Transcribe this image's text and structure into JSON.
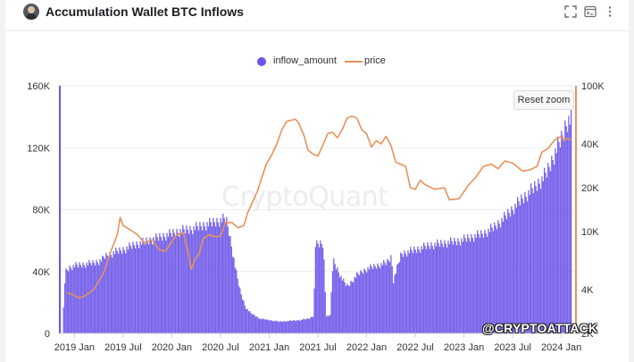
{
  "header": {
    "title": "Accumulation Wallet BTC Inflows",
    "icons": [
      "avatar",
      "fullscreen-icon",
      "terminal-icon",
      "more-vertical-icon"
    ]
  },
  "legend": {
    "series1": "inflow_amount",
    "series2": "price"
  },
  "reset_zoom_label": "Reset zoom",
  "watermark_text": "@CRYPTOATTACK",
  "logo_text": "CryptoQuant",
  "colors": {
    "bars": "#6a55e8",
    "price": "#e8925a",
    "axis_left": "#6a55e8",
    "axis_right": "#e8925a"
  },
  "chart_data": {
    "type": "bar+line",
    "title": "Accumulation Wallet BTC Inflows",
    "x_tick_labels": [
      "2019 Jan",
      "2019 Jul",
      "2020 Jan",
      "2020 Jul",
      "2021 Jan",
      "2021 Jul",
      "2022 Jan",
      "2022 Jul",
      "2023 Jan",
      "2023 Jul",
      "2024 Jan"
    ],
    "x_range": [
      2018.85,
      2024.15
    ],
    "left_axis": {
      "ticks": [
        0,
        40000,
        80000,
        120000,
        160000
      ],
      "tick_labels": [
        "0",
        "40K",
        "80K",
        "120K",
        "160K"
      ],
      "range": [
        0,
        160000
      ]
    },
    "right_axis": {
      "scale": "log",
      "ticks": [
        2000,
        4000,
        10000,
        20000,
        40000,
        100000
      ],
      "tick_labels": [
        "2K",
        "4K",
        "10K",
        "20K",
        "40K",
        "100K"
      ],
      "range": [
        2000,
        100000
      ]
    },
    "series": [
      {
        "name": "inflow_amount",
        "kind": "bar",
        "points": [
          [
            2018.87,
            0
          ],
          [
            2018.9,
            42000
          ],
          [
            2018.95,
            45000
          ],
          [
            2019.0,
            46000
          ],
          [
            2019.1,
            47000
          ],
          [
            2019.2,
            48000
          ],
          [
            2019.28,
            50000
          ],
          [
            2019.3,
            52000
          ],
          [
            2019.4,
            55000
          ],
          [
            2019.5,
            57000
          ],
          [
            2019.6,
            60000
          ],
          [
            2019.7,
            62000
          ],
          [
            2019.8,
            64000
          ],
          [
            2019.9,
            66000
          ],
          [
            2020.0,
            68000
          ],
          [
            2020.1,
            70000
          ],
          [
            2020.2,
            71000
          ],
          [
            2020.3,
            73000
          ],
          [
            2020.4,
            75000
          ],
          [
            2020.5,
            77000
          ],
          [
            2020.55,
            78000
          ],
          [
            2020.58,
            70000
          ],
          [
            2020.62,
            55000
          ],
          [
            2020.66,
            40000
          ],
          [
            2020.7,
            28000
          ],
          [
            2020.75,
            18000
          ],
          [
            2020.8,
            14000
          ],
          [
            2020.85,
            12000
          ],
          [
            2020.9,
            10000
          ],
          [
            2021.0,
            9000
          ],
          [
            2021.1,
            8000
          ],
          [
            2021.2,
            8500
          ],
          [
            2021.3,
            9000
          ],
          [
            2021.4,
            10000
          ],
          [
            2021.45,
            12000
          ],
          [
            2021.47,
            60000
          ],
          [
            2021.55,
            61000
          ],
          [
            2021.58,
            12000
          ],
          [
            2021.62,
            12000
          ],
          [
            2021.65,
            50000
          ],
          [
            2021.75,
            36000
          ],
          [
            2021.8,
            32000
          ],
          [
            2021.85,
            36000
          ],
          [
            2021.9,
            40000
          ],
          [
            2022.0,
            44000
          ],
          [
            2022.1,
            46000
          ],
          [
            2022.2,
            48000
          ],
          [
            2022.25,
            52000
          ],
          [
            2022.27,
            36000
          ],
          [
            2022.35,
            54000
          ],
          [
            2022.45,
            56000
          ],
          [
            2022.55,
            58000
          ],
          [
            2022.65,
            60000
          ],
          [
            2022.75,
            61000
          ],
          [
            2022.85,
            62000
          ],
          [
            2022.95,
            63000
          ],
          [
            2023.0,
            64000
          ],
          [
            2023.1,
            66000
          ],
          [
            2023.2,
            68000
          ],
          [
            2023.3,
            72000
          ],
          [
            2023.4,
            78000
          ],
          [
            2023.5,
            85000
          ],
          [
            2023.6,
            92000
          ],
          [
            2023.7,
            98000
          ],
          [
            2023.8,
            105000
          ],
          [
            2023.85,
            110000
          ],
          [
            2023.9,
            118000
          ],
          [
            2023.95,
            126000
          ],
          [
            2024.0,
            133000
          ],
          [
            2024.03,
            140000
          ],
          [
            2024.06,
            145000
          ],
          [
            2024.1,
            145000
          ]
        ]
      },
      {
        "name": "price",
        "kind": "line",
        "points": [
          [
            2018.92,
            3800
          ],
          [
            2018.98,
            3700
          ],
          [
            2019.05,
            3500
          ],
          [
            2019.1,
            3600
          ],
          [
            2019.2,
            4000
          ],
          [
            2019.3,
            5200
          ],
          [
            2019.38,
            7500
          ],
          [
            2019.44,
            9500
          ],
          [
            2019.47,
            12500
          ],
          [
            2019.5,
            11000
          ],
          [
            2019.55,
            10500
          ],
          [
            2019.6,
            10000
          ],
          [
            2019.65,
            9500
          ],
          [
            2019.72,
            8300
          ],
          [
            2019.8,
            8800
          ],
          [
            2019.87,
            7500
          ],
          [
            2019.93,
            7300
          ],
          [
            2020.0,
            8500
          ],
          [
            2020.05,
            9500
          ],
          [
            2020.12,
            9800
          ],
          [
            2020.17,
            7000
          ],
          [
            2020.2,
            5500
          ],
          [
            2020.24,
            6500
          ],
          [
            2020.28,
            7000
          ],
          [
            2020.32,
            8900
          ],
          [
            2020.38,
            9500
          ],
          [
            2020.45,
            9200
          ],
          [
            2020.5,
            9300
          ],
          [
            2020.55,
            11500
          ],
          [
            2020.62,
            11500
          ],
          [
            2020.68,
            10600
          ],
          [
            2020.74,
            11000
          ],
          [
            2020.78,
            13500
          ],
          [
            2020.83,
            16000
          ],
          [
            2020.88,
            19000
          ],
          [
            2020.92,
            23000
          ],
          [
            2020.97,
            29000
          ],
          [
            2021.03,
            34000
          ],
          [
            2021.08,
            40000
          ],
          [
            2021.13,
            50000
          ],
          [
            2021.18,
            57000
          ],
          [
            2021.22,
            58000
          ],
          [
            2021.27,
            59000
          ],
          [
            2021.3,
            56000
          ],
          [
            2021.36,
            45000
          ],
          [
            2021.4,
            36000
          ],
          [
            2021.45,
            34000
          ],
          [
            2021.5,
            33000
          ],
          [
            2021.55,
            39000
          ],
          [
            2021.6,
            47000
          ],
          [
            2021.65,
            48000
          ],
          [
            2021.7,
            44000
          ],
          [
            2021.75,
            50000
          ],
          [
            2021.8,
            60000
          ],
          [
            2021.85,
            62000
          ],
          [
            2021.9,
            60000
          ],
          [
            2021.95,
            50000
          ],
          [
            2022.0,
            47000
          ],
          [
            2022.05,
            38000
          ],
          [
            2022.1,
            42000
          ],
          [
            2022.15,
            40000
          ],
          [
            2022.2,
            45000
          ],
          [
            2022.25,
            39000
          ],
          [
            2022.3,
            30000
          ],
          [
            2022.4,
            28000
          ],
          [
            2022.45,
            20000
          ],
          [
            2022.5,
            19500
          ],
          [
            2022.55,
            22500
          ],
          [
            2022.6,
            21000
          ],
          [
            2022.7,
            19500
          ],
          [
            2022.8,
            20000
          ],
          [
            2022.85,
            16500
          ],
          [
            2022.95,
            16800
          ],
          [
            2023.05,
            21000
          ],
          [
            2023.12,
            23500
          ],
          [
            2023.2,
            28000
          ],
          [
            2023.28,
            29000
          ],
          [
            2023.35,
            27000
          ],
          [
            2023.42,
            30500
          ],
          [
            2023.5,
            29500
          ],
          [
            2023.6,
            26000
          ],
          [
            2023.68,
            26500
          ],
          [
            2023.75,
            28000
          ],
          [
            2023.8,
            35000
          ],
          [
            2023.87,
            37500
          ],
          [
            2023.93,
            42500
          ],
          [
            2024.0,
            45000
          ],
          [
            2024.03,
            42000
          ],
          [
            2024.06,
            43500
          ],
          [
            2024.1,
            42500
          ]
        ]
      }
    ]
  }
}
